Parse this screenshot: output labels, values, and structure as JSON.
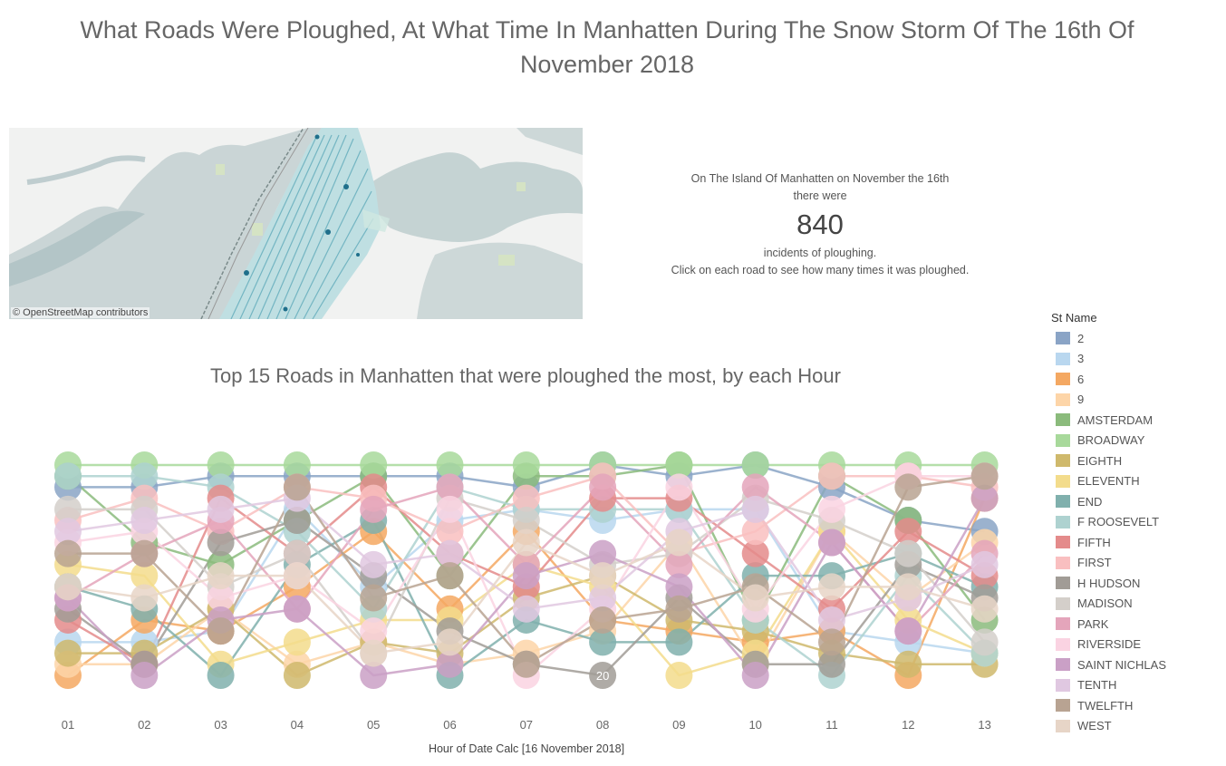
{
  "dashboard_title": "What Roads Were Ploughed, At What Time In Manhatten During The Snow Storm Of The 16th Of November 2018",
  "map": {
    "attribution": "© OpenStreetMap contributors"
  },
  "kpi": {
    "line1": "On The Island Of Manhatten on November the 16th",
    "line2": "there were",
    "value": "840",
    "line3": "incidents of ploughing.",
    "line4": "Click on each road to see how many times it was ploughed."
  },
  "chart_data": {
    "type": "line",
    "title": "Top 15 Roads in Manhatten that were ploughed the most, by each Hour",
    "xlabel": "Hour of Date Calc [16 November 2018]",
    "categories": [
      "01",
      "02",
      "03",
      "04",
      "05",
      "06",
      "07",
      "08",
      "09",
      "10",
      "11",
      "12",
      "13"
    ],
    "rank_range": [
      1,
      20
    ],
    "annotation": {
      "series": "H HUDSON",
      "hour": "08",
      "label": "20"
    },
    "legend_title": "St Name",
    "series": [
      {
        "name": "2",
        "color": "#8aa4c6",
        "values": [
          3,
          3,
          2,
          2,
          2,
          2,
          3,
          1,
          2,
          1,
          3,
          6,
          7
        ]
      },
      {
        "name": "3",
        "color": "#b9d7ef",
        "values": [
          17,
          17,
          16,
          5,
          12,
          6,
          5,
          6,
          5,
          5,
          16,
          17,
          18
        ]
      },
      {
        "name": "6",
        "color": "#f4a862",
        "values": [
          20,
          15,
          16,
          12,
          7,
          14,
          7,
          15,
          16,
          17,
          16,
          20,
          4
        ]
      },
      {
        "name": "9",
        "color": "#fdd5a8",
        "values": [
          19,
          19,
          14,
          19,
          17,
          19,
          18,
          16,
          8,
          19,
          7,
          13,
          8
        ]
      },
      {
        "name": "AMSTERDAM",
        "color": "#8bbb7c",
        "values": [
          2,
          8,
          10,
          6,
          2,
          11,
          2,
          2,
          1,
          15,
          2,
          6,
          15
        ]
      },
      {
        "name": "BROADWAY",
        "color": "#a8d99b",
        "values": [
          1,
          1,
          1,
          1,
          1,
          1,
          1,
          1,
          1,
          1,
          1,
          1,
          1
        ]
      },
      {
        "name": "EIGHTH",
        "color": "#cfb96c",
        "values": [
          18,
          18,
          14,
          20,
          17,
          18,
          13,
          11,
          15,
          16,
          18,
          19,
          19
        ]
      },
      {
        "name": "ELEVENTH",
        "color": "#f3dc8c",
        "values": [
          10,
          11,
          19,
          17,
          15,
          15,
          10,
          12,
          20,
          18,
          7,
          15,
          18
        ]
      },
      {
        "name": "END",
        "color": "#80b0ad",
        "values": [
          12,
          14,
          20,
          10,
          6,
          20,
          15,
          17,
          17,
          11,
          11,
          9,
          12
        ]
      },
      {
        "name": "F ROOSEVELT",
        "color": "#aed2d0",
        "values": [
          2,
          2,
          3,
          7,
          14,
          3,
          5,
          5,
          5,
          15,
          20,
          11,
          18
        ]
      },
      {
        "name": "FIFTH",
        "color": "#e48b8b",
        "values": [
          15,
          19,
          4,
          9,
          3,
          9,
          12,
          4,
          4,
          9,
          14,
          7,
          11
        ]
      },
      {
        "name": "FIRST",
        "color": "#f9bfc0",
        "values": [
          6,
          4,
          7,
          3,
          4,
          7,
          4,
          2,
          9,
          7,
          2,
          2,
          3
        ]
      },
      {
        "name": "H HUDSON",
        "color": "#a19c96",
        "values": [
          14,
          19,
          8,
          6,
          11,
          16,
          19,
          20,
          13,
          19,
          19,
          10,
          13
        ]
      },
      {
        "name": "MADISON",
        "color": "#d4cfca",
        "values": [
          5,
          5,
          12,
          9,
          18,
          4,
          6,
          10,
          9,
          4,
          6,
          9,
          17
        ]
      },
      {
        "name": "PARK",
        "color": "#e4a5bb",
        "values": [
          13,
          9,
          6,
          14,
          5,
          3,
          10,
          3,
          10,
          3,
          8,
          16,
          9
        ]
      },
      {
        "name": "RIVERSIDE",
        "color": "#fad3e2",
        "values": [
          8,
          7,
          13,
          11,
          16,
          5,
          20,
          14,
          3,
          14,
          5,
          2,
          2
        ]
      },
      {
        "name": "SAINT NICHLAS",
        "color": "#caa0c6",
        "values": [
          13,
          20,
          15,
          14,
          20,
          19,
          11,
          9,
          12,
          20,
          8,
          16,
          4
        ]
      },
      {
        "name": "TENTH",
        "color": "#e0c8e1",
        "values": [
          7,
          6,
          5,
          4,
          10,
          9,
          14,
          13,
          7,
          5,
          15,
          13,
          10
        ]
      },
      {
        "name": "TWELFTH",
        "color": "#b8a392",
        "values": [
          9,
          9,
          16,
          3,
          13,
          11,
          19,
          15,
          14,
          12,
          17,
          3,
          2
        ]
      },
      {
        "name": "WEST",
        "color": "#e7d5c7",
        "values": [
          12,
          13,
          11,
          11,
          18,
          17,
          8,
          11,
          8,
          13,
          12,
          12,
          14
        ]
      }
    ]
  }
}
